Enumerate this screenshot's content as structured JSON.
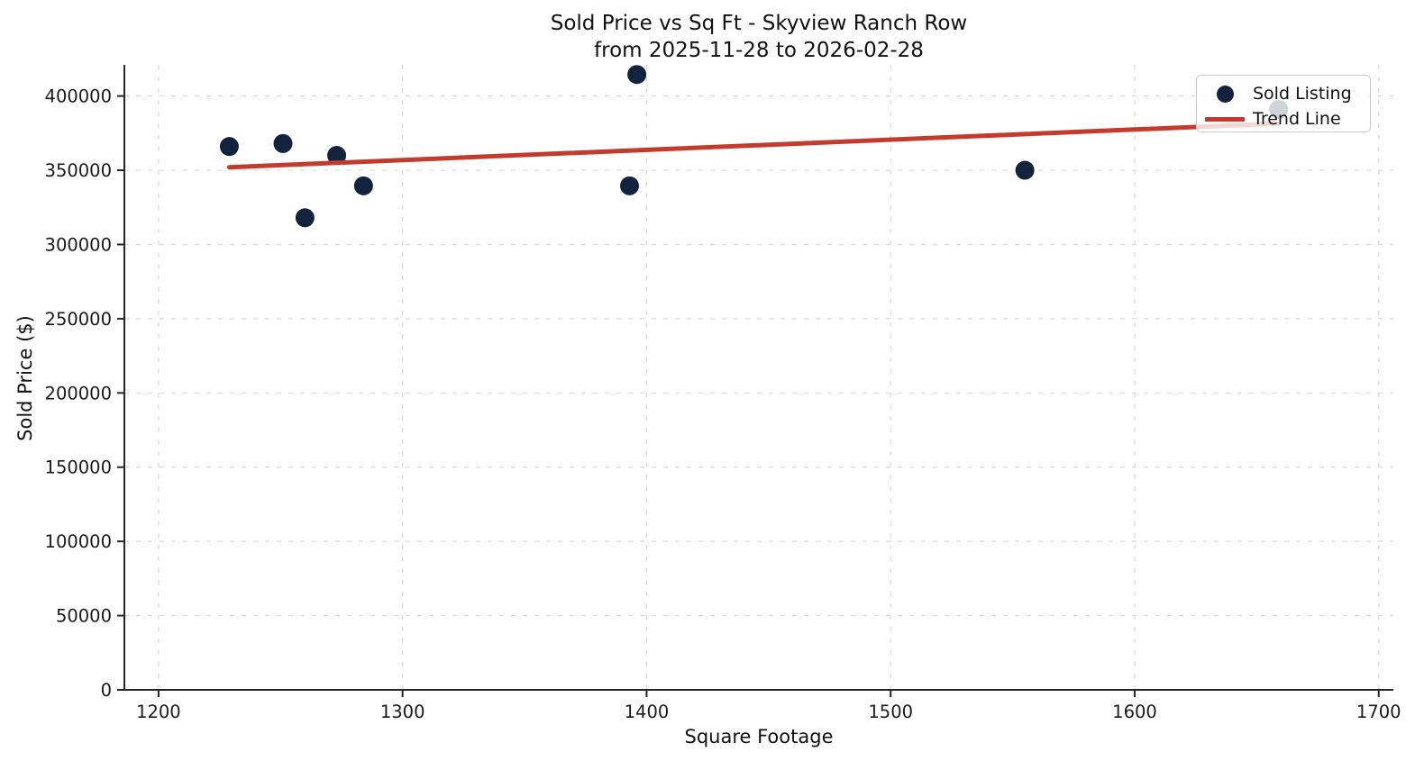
{
  "chart_data": {
    "type": "scatter",
    "title": "Sold Price vs Sq Ft - Skyview Ranch Row",
    "subtitle": "from 2025-11-28 to 2026-02-28",
    "xlabel": "Square Footage",
    "ylabel": "Sold Price ($)",
    "xlim": [
      1186,
      1706
    ],
    "ylim": [
      0,
      421000
    ],
    "x_ticks": [
      1200,
      1300,
      1400,
      1500,
      1600,
      1700
    ],
    "y_ticks": [
      0,
      50000,
      100000,
      150000,
      200000,
      250000,
      300000,
      350000,
      400000
    ],
    "grid": "dashed",
    "points": [
      {
        "sqft": 1229,
        "price": 366000
      },
      {
        "sqft": 1251,
        "price": 368000
      },
      {
        "sqft": 1260,
        "price": 318000
      },
      {
        "sqft": 1273,
        "price": 360000
      },
      {
        "sqft": 1284,
        "price": 339500
      },
      {
        "sqft": 1393,
        "price": 339500
      },
      {
        "sqft": 1396,
        "price": 414500
      },
      {
        "sqft": 1555,
        "price": 350000
      },
      {
        "sqft": 1659,
        "price": 391000
      }
    ],
    "trend_line": {
      "x1": 1229,
      "y1": 352000,
      "x2": 1659,
      "y2": 381500
    },
    "legend_items": [
      {
        "label": "Sold Listing",
        "type": "marker"
      },
      {
        "label": "Trend Line",
        "type": "line"
      }
    ],
    "legend_position": "upper right",
    "colors": {
      "scatter": "#13233d",
      "trend": "#c23b2c",
      "grid": "#d9d9d9",
      "spine": "#262626",
      "tick_text": "#1a1a1a"
    }
  }
}
